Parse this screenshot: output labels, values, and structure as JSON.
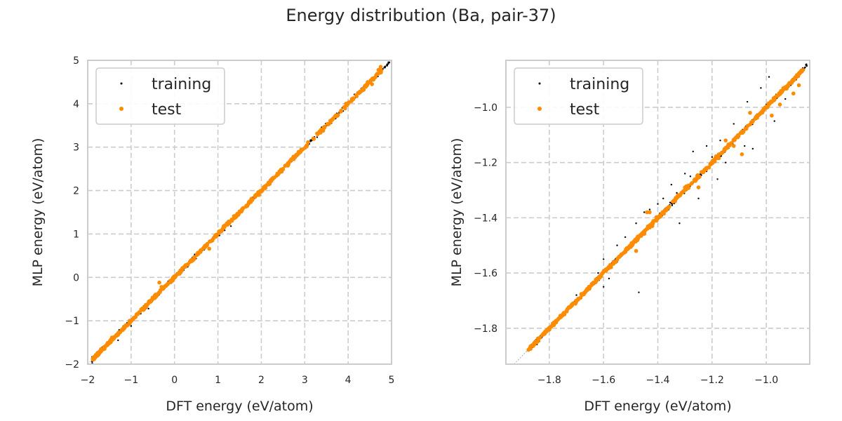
{
  "chart_data": [
    {
      "type": "scatter",
      "title": "Energy distribution (Ba, pair-37)",
      "xlabel": "DFT energy (eV/atom)",
      "ylabel": "MLP energy (eV/atom)",
      "xlim": [
        -2,
        5
      ],
      "ylim": [
        -2,
        5
      ],
      "xticks": [
        -2,
        -1,
        0,
        1,
        2,
        3,
        4,
        5
      ],
      "yticks": [
        -2,
        -1,
        0,
        1,
        2,
        3,
        4,
        5
      ],
      "xtick_labels": [
        "−2",
        "−1",
        "0",
        "1",
        "2",
        "3",
        "4",
        "5"
      ],
      "ytick_labels": [
        "−2",
        "−1",
        "0",
        "1",
        "2",
        "3",
        "4",
        "5"
      ],
      "grid": true,
      "legend_position": "top-left",
      "diagonal_reference": true,
      "series": [
        {
          "name": "training",
          "color": "#000000",
          "marker_size": "small",
          "dense_range": [
            -1.9,
            4.95
          ],
          "points": [
            [
              -1.88,
              -1.87
            ],
            [
              -1.8,
              -1.78
            ],
            [
              -1.7,
              -1.71
            ],
            [
              -1.6,
              -1.6
            ],
            [
              -1.5,
              -1.49
            ],
            [
              -1.4,
              -1.42
            ],
            [
              -1.3,
              -1.3
            ],
            [
              -1.2,
              -1.19
            ],
            [
              -1.1,
              -1.1
            ],
            [
              -1.0,
              -1.01
            ],
            [
              -0.9,
              -0.88
            ],
            [
              -0.8,
              -0.81
            ],
            [
              -0.7,
              -0.7
            ],
            [
              -0.6,
              -0.6
            ],
            [
              -0.5,
              -0.49
            ],
            [
              -0.4,
              -0.4
            ],
            [
              -0.3,
              -0.31
            ],
            [
              -0.2,
              -0.2
            ],
            [
              -0.1,
              -0.1
            ],
            [
              0.0,
              0.01
            ],
            [
              0.1,
              0.1
            ],
            [
              0.2,
              0.19
            ],
            [
              0.3,
              0.3
            ],
            [
              0.4,
              0.41
            ],
            [
              0.5,
              0.5
            ],
            [
              0.6,
              0.6
            ],
            [
              0.7,
              0.69
            ],
            [
              0.8,
              0.8
            ],
            [
              0.9,
              0.91
            ],
            [
              1.0,
              1.0
            ],
            [
              1.1,
              1.1
            ],
            [
              1.2,
              1.19
            ],
            [
              1.3,
              1.3
            ],
            [
              1.4,
              1.41
            ],
            [
              1.5,
              1.5
            ],
            [
              1.6,
              1.6
            ],
            [
              1.7,
              1.7
            ],
            [
              1.8,
              1.8
            ],
            [
              1.9,
              1.91
            ],
            [
              2.0,
              2.0
            ],
            [
              2.1,
              2.1
            ],
            [
              2.2,
              2.19
            ],
            [
              2.3,
              2.3
            ],
            [
              2.4,
              2.4
            ],
            [
              2.5,
              2.5
            ],
            [
              2.6,
              2.6
            ],
            [
              2.7,
              2.71
            ],
            [
              2.8,
              2.8
            ],
            [
              2.9,
              2.9
            ],
            [
              3.0,
              3.0
            ],
            [
              3.1,
              3.1
            ],
            [
              3.2,
              3.19
            ],
            [
              3.3,
              3.3
            ],
            [
              3.4,
              3.4
            ],
            [
              3.5,
              3.5
            ],
            [
              3.6,
              3.6
            ],
            [
              3.7,
              3.7
            ],
            [
              3.8,
              3.81
            ],
            [
              3.9,
              3.9
            ],
            [
              4.0,
              4.0
            ],
            [
              4.1,
              4.1
            ],
            [
              4.2,
              4.2
            ],
            [
              4.3,
              4.3
            ],
            [
              4.4,
              4.4
            ],
            [
              4.5,
              4.5
            ],
            [
              4.6,
              4.6
            ],
            [
              4.7,
              4.7
            ],
            [
              4.8,
              4.8
            ],
            [
              4.9,
              4.91
            ],
            [
              4.95,
              4.95
            ],
            [
              -1.3,
              -1.45
            ],
            [
              -1.0,
              -1.12
            ],
            [
              -0.6,
              -0.72
            ],
            [
              1.3,
              1.18
            ]
          ]
        },
        {
          "name": "test",
          "color": "#ff8c00",
          "marker_size": "medium",
          "dense_range": [
            -1.88,
            4.8
          ],
          "points": [
            [
              -1.85,
              -1.86
            ],
            [
              -1.7,
              -1.69
            ],
            [
              -1.55,
              -1.56
            ],
            [
              -1.4,
              -1.39
            ],
            [
              -1.25,
              -1.26
            ],
            [
              -1.1,
              -1.1
            ],
            [
              -0.95,
              -0.96
            ],
            [
              -0.85,
              -0.85
            ],
            [
              -0.75,
              -0.74
            ],
            [
              -0.65,
              -0.66
            ],
            [
              -0.55,
              -0.55
            ],
            [
              -0.4,
              -0.41
            ],
            [
              -0.35,
              -0.12
            ],
            [
              -0.3,
              -0.22
            ],
            [
              -0.1,
              -0.08
            ],
            [
              0.05,
              0.06
            ],
            [
              0.45,
              0.46
            ],
            [
              0.55,
              0.54
            ],
            [
              0.7,
              0.7
            ],
            [
              0.8,
              0.66
            ],
            [
              0.9,
              0.9
            ],
            [
              1.2,
              1.21
            ],
            [
              1.55,
              1.56
            ],
            [
              1.7,
              1.69
            ],
            [
              2.0,
              1.98
            ],
            [
              2.3,
              2.3
            ],
            [
              2.5,
              2.49
            ],
            [
              2.8,
              2.8
            ],
            [
              2.9,
              2.9
            ],
            [
              3.2,
              3.2
            ],
            [
              3.3,
              3.3
            ],
            [
              3.65,
              3.65
            ],
            [
              3.95,
              4.0
            ],
            [
              4.45,
              4.5
            ],
            [
              4.55,
              4.45
            ],
            [
              4.7,
              4.78
            ],
            [
              4.75,
              4.85
            ]
          ]
        }
      ]
    },
    {
      "type": "scatter",
      "xlabel": "DFT energy (eV/atom)",
      "ylabel": "MLP energy (eV/atom)",
      "xlim": [
        -1.96,
        -0.84
      ],
      "ylim": [
        -1.93,
        -0.83
      ],
      "xticks": [
        -1.8,
        -1.6,
        -1.4,
        -1.2,
        -1.0
      ],
      "yticks": [
        -1.8,
        -1.6,
        -1.4,
        -1.2,
        -1.0
      ],
      "xtick_labels": [
        "−1.8",
        "−1.6",
        "−1.4",
        "−1.2",
        "−1.0"
      ],
      "ytick_labels": [
        "−1.8",
        "−1.6",
        "−1.4",
        "−1.2",
        "−1.0"
      ],
      "grid": true,
      "legend_position": "top-left",
      "diagonal_reference": true,
      "series": [
        {
          "name": "training",
          "color": "#000000",
          "marker_size": "small",
          "dense_range": [
            -1.88,
            -0.85
          ],
          "points": [
            [
              -1.78,
              -1.79
            ],
            [
              -1.7,
              -1.68
            ],
            [
              -1.62,
              -1.6
            ],
            [
              -1.6,
              -1.55
            ],
            [
              -1.58,
              -1.62
            ],
            [
              -1.55,
              -1.5
            ],
            [
              -1.52,
              -1.47
            ],
            [
              -1.5,
              -1.5
            ],
            [
              -1.48,
              -1.42
            ],
            [
              -1.47,
              -1.67
            ],
            [
              -1.45,
              -1.38
            ],
            [
              -1.43,
              -1.37
            ],
            [
              -1.42,
              -1.41
            ],
            [
              -1.4,
              -1.35
            ],
            [
              -1.38,
              -1.33
            ],
            [
              -1.36,
              -1.37
            ],
            [
              -1.35,
              -1.28
            ],
            [
              -1.33,
              -1.31
            ],
            [
              -1.32,
              -1.42
            ],
            [
              -1.3,
              -1.24
            ],
            [
              -1.28,
              -1.25
            ],
            [
              -1.27,
              -1.16
            ],
            [
              -1.25,
              -1.33
            ],
            [
              -1.23,
              -1.23
            ],
            [
              -1.22,
              -1.14
            ],
            [
              -1.2,
              -1.18
            ],
            [
              -1.18,
              -1.26
            ],
            [
              -1.17,
              -1.12
            ],
            [
              -1.15,
              -1.2
            ],
            [
              -1.13,
              -1.13
            ],
            [
              -1.12,
              -1.06
            ],
            [
              -1.1,
              -1.1
            ],
            [
              -1.08,
              -1.14
            ],
            [
              -1.07,
              -0.98
            ],
            [
              -1.05,
              -1.15
            ],
            [
              -1.04,
              -1.04
            ],
            [
              -1.02,
              -0.93
            ],
            [
              -1.0,
              -0.99
            ],
            [
              -0.99,
              -0.89
            ],
            [
              -0.97,
              -1.05
            ],
            [
              -0.95,
              -0.95
            ],
            [
              -0.93,
              -0.97
            ],
            [
              -0.91,
              -0.92
            ],
            [
              -0.89,
              -0.9
            ],
            [
              -0.87,
              -0.87
            ],
            [
              -0.86,
              -0.86
            ],
            [
              -1.6,
              -1.65
            ],
            [
              -1.65,
              -1.66
            ],
            [
              -1.55,
              -1.56
            ]
          ]
        },
        {
          "name": "test",
          "color": "#ff8c00",
          "marker_size": "medium",
          "dense_range": [
            -1.88,
            -0.86
          ],
          "points": [
            [
              -1.65,
              -1.65
            ],
            [
              -1.48,
              -1.52
            ],
            [
              -1.44,
              -1.38
            ],
            [
              -1.43,
              -1.38
            ],
            [
              -1.42,
              -1.43
            ],
            [
              -1.3,
              -1.29
            ],
            [
              -1.25,
              -1.29
            ],
            [
              -1.2,
              -1.2
            ],
            [
              -1.15,
              -1.12
            ],
            [
              -1.12,
              -1.14
            ],
            [
              -1.09,
              -1.17
            ],
            [
              -1.06,
              -1.02
            ],
            [
              -1.02,
              -1.02
            ],
            [
              -0.98,
              -1.03
            ],
            [
              -0.95,
              -0.99
            ],
            [
              -0.93,
              -0.93
            ],
            [
              -0.9,
              -0.95
            ],
            [
              -0.88,
              -0.92
            ]
          ]
        }
      ]
    }
  ],
  "figure": {
    "title": "Energy distribution (Ba, pair-37)"
  }
}
